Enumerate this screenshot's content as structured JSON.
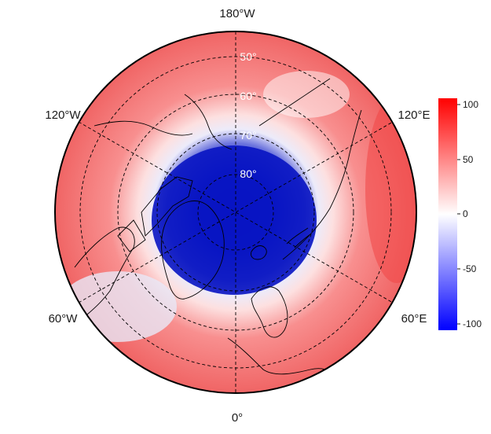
{
  "map": {
    "projection": "north-polar-stereographic",
    "longitude_labels": [
      {
        "key": "180W",
        "text": "180°W"
      },
      {
        "key": "120W",
        "text": "120°W"
      },
      {
        "key": "120E",
        "text": "120°E"
      },
      {
        "key": "60W",
        "text": "60°W"
      },
      {
        "key": "60E",
        "text": "60°E"
      },
      {
        "key": "0",
        "text": "0°"
      }
    ],
    "latitude_labels": [
      "50°",
      "60°",
      "70°",
      "80°"
    ],
    "colorbar": {
      "range": [
        -105,
        105
      ],
      "ticks": [
        "100",
        "50",
        "0",
        "-50",
        "-100"
      ],
      "colors": {
        "low": "#0000ff",
        "mid": "#ffffff",
        "high": "#ff0000"
      }
    },
    "field": {
      "description_pattern": "negative anomaly over the polar cap (north of ~65°N), positive anomaly in mid-latitudes",
      "polar_minimum": -100,
      "midlatitude_maximum": 90
    }
  }
}
